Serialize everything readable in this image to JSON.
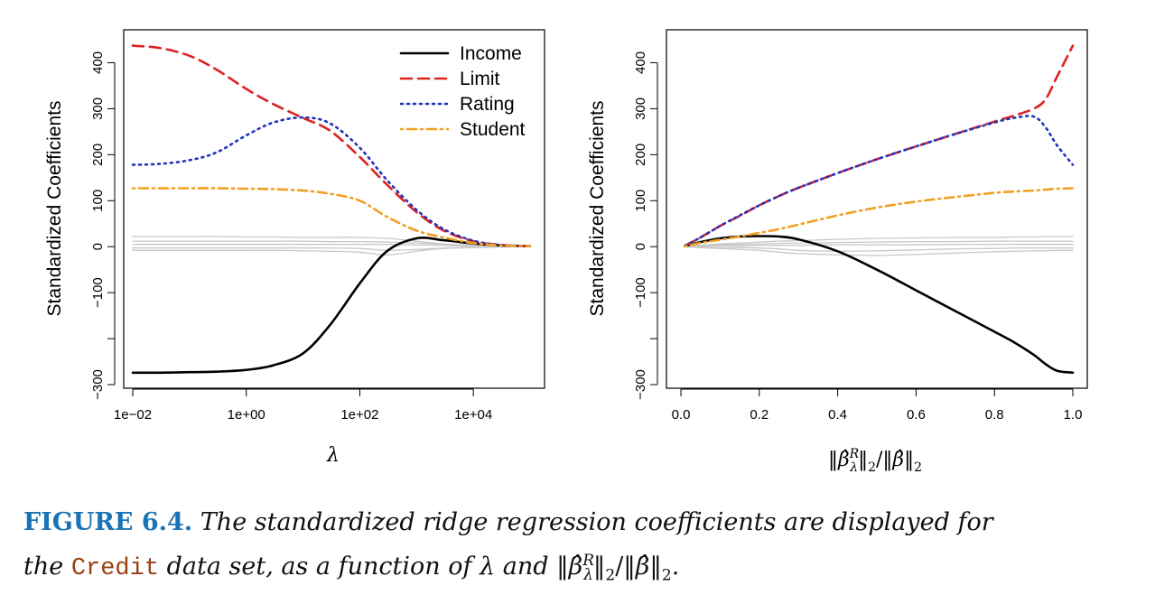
{
  "chart_data": [
    {
      "type": "line",
      "xscale": "log",
      "xlabel": "λ",
      "ylabel": "Standardized Coefficients",
      "xlim": [
        0.01,
        100000
      ],
      "ylim": [
        -300,
        450
      ],
      "x_ticks": [
        "1e−02",
        "1e+00",
        "1e+02",
        "1e+04"
      ],
      "x_tick_values": [
        0.01,
        1,
        100,
        10000
      ],
      "y_ticks": [
        "−300",
        "−100",
        "0",
        "100",
        "200",
        "300",
        "400"
      ],
      "y_tick_values": [
        -300,
        -100,
        0,
        100,
        200,
        300,
        400
      ],
      "legend_placement": "top-right",
      "legend": [
        {
          "name": "Income",
          "color": "#000000",
          "style": "solid"
        },
        {
          "name": "Limit",
          "color": "#dd2222",
          "style": "dashed"
        },
        {
          "name": "Rating",
          "color": "#2233bb",
          "style": "dotted"
        },
        {
          "name": "Student",
          "color": "#f0a020",
          "style": "dotdash"
        }
      ],
      "x": [
        0.01,
        0.03,
        0.1,
        0.3,
        1,
        3,
        10,
        30,
        100,
        300,
        1000,
        3000,
        10000,
        30000,
        100000
      ],
      "series": [
        {
          "name": "Income",
          "color": "#000000",
          "style": "solid",
          "values": [
            -274,
            -274,
            -273,
            -272,
            -268,
            -258,
            -232,
            -170,
            -80,
            -10,
            18,
            14,
            7,
            3,
            1
          ]
        },
        {
          "name": "Limit",
          "color": "#dd2222",
          "style": "dashed",
          "values": [
            437,
            432,
            415,
            385,
            343,
            310,
            280,
            252,
            195,
            135,
            75,
            35,
            12,
            4,
            1
          ]
        },
        {
          "name": "Rating",
          "color": "#2233bb",
          "style": "dotted",
          "values": [
            178,
            180,
            188,
            205,
            242,
            270,
            281,
            268,
            215,
            145,
            80,
            38,
            13,
            4,
            1
          ]
        },
        {
          "name": "Student",
          "color": "#f0a020",
          "style": "dotdash",
          "values": [
            127,
            127,
            127,
            127,
            126,
            125,
            122,
            115,
            100,
            65,
            35,
            20,
            8,
            3,
            1
          ]
        },
        {
          "name": "",
          "color": "#c8c8c8",
          "style": "solid",
          "values": [
            22,
            22,
            22,
            22,
            21,
            21,
            20,
            20,
            20,
            18,
            12,
            6,
            3,
            1,
            0
          ]
        },
        {
          "name": "",
          "color": "#c8c8c8",
          "style": "solid",
          "values": [
            12,
            12,
            12,
            12,
            12,
            12,
            12,
            11,
            11,
            10,
            8,
            5,
            2,
            1,
            0
          ]
        },
        {
          "name": "",
          "color": "#c8c8c8",
          "style": "solid",
          "values": [
            5,
            5,
            5,
            5,
            5,
            5,
            5,
            5,
            5,
            5,
            4,
            3,
            1,
            0,
            0
          ]
        },
        {
          "name": "",
          "color": "#c8c8c8",
          "style": "solid",
          "values": [
            -3,
            -3,
            -3,
            -3,
            -3,
            -3,
            -3,
            -3,
            -4,
            -8,
            -6,
            -3,
            -1,
            0,
            0
          ]
        },
        {
          "name": "",
          "color": "#c8c8c8",
          "style": "solid",
          "values": [
            -8,
            -8,
            -8,
            -8,
            -8,
            -8,
            -9,
            -10,
            -12,
            -18,
            -10,
            -4,
            -2,
            -1,
            0
          ]
        }
      ]
    },
    {
      "type": "line",
      "xlabel": "‖β̂λR‖2/‖β̂‖2",
      "ylabel": "Standardized Coefficients",
      "xlim": [
        0,
        1
      ],
      "ylim": [
        -300,
        450
      ],
      "x_ticks": [
        "0.0",
        "0.2",
        "0.4",
        "0.6",
        "0.8",
        "1.0"
      ],
      "x_tick_values": [
        0,
        0.2,
        0.4,
        0.6,
        0.8,
        1.0
      ],
      "y_ticks": [
        "−300",
        "−100",
        "0",
        "100",
        "200",
        "300",
        "400"
      ],
      "y_tick_values": [
        -300,
        -100,
        0,
        100,
        200,
        300,
        400
      ],
      "x": [
        0.01,
        0.05,
        0.1,
        0.15,
        0.2,
        0.25,
        0.3,
        0.4,
        0.5,
        0.6,
        0.7,
        0.8,
        0.85,
        0.9,
        0.93,
        0.96,
        1.0
      ],
      "series": [
        {
          "name": "Income",
          "color": "#000000",
          "style": "solid",
          "values": [
            1,
            10,
            18,
            22,
            23,
            22,
            16,
            -10,
            -50,
            -95,
            -140,
            -185,
            -208,
            -235,
            -255,
            -270,
            -274
          ]
        },
        {
          "name": "Limit",
          "color": "#dd2222",
          "style": "dashed",
          "values": [
            2,
            20,
            45,
            67,
            90,
            110,
            128,
            160,
            190,
            218,
            245,
            272,
            285,
            300,
            320,
            370,
            437
          ]
        },
        {
          "name": "Rating",
          "color": "#2233bb",
          "style": "dotted",
          "values": [
            2,
            20,
            45,
            68,
            90,
            110,
            128,
            160,
            190,
            218,
            245,
            270,
            280,
            283,
            260,
            220,
            178
          ]
        },
        {
          "name": "Student",
          "color": "#f0a020",
          "style": "dotdash",
          "values": [
            1,
            8,
            15,
            22,
            30,
            38,
            48,
            68,
            85,
            98,
            108,
            117,
            120,
            122,
            124,
            126,
            127
          ]
        },
        {
          "name": "",
          "color": "#c8c8c8",
          "style": "solid",
          "values": [
            0,
            3,
            6,
            8,
            10,
            12,
            13,
            16,
            18,
            19,
            20,
            20,
            21,
            21,
            22,
            22,
            22
          ]
        },
        {
          "name": "",
          "color": "#c8c8c8",
          "style": "solid",
          "values": [
            0,
            2,
            4,
            5,
            6,
            7,
            8,
            9,
            10,
            11,
            11,
            12,
            12,
            12,
            12,
            12,
            12
          ]
        },
        {
          "name": "",
          "color": "#c8c8c8",
          "style": "solid",
          "values": [
            0,
            1,
            2,
            2,
            3,
            3,
            3,
            4,
            4,
            4,
            5,
            5,
            5,
            5,
            5,
            5,
            5
          ]
        },
        {
          "name": "",
          "color": "#c8c8c8",
          "style": "solid",
          "values": [
            0,
            -1,
            -2,
            -2,
            -3,
            -5,
            -8,
            -10,
            -9,
            -7,
            -5,
            -4,
            -3,
            -3,
            -3,
            -3,
            -3
          ]
        },
        {
          "name": "",
          "color": "#c8c8c8",
          "style": "solid",
          "values": [
            0,
            -2,
            -4,
            -6,
            -8,
            -12,
            -15,
            -18,
            -19,
            -17,
            -14,
            -11,
            -10,
            -9,
            -9,
            -8,
            -8
          ]
        }
      ]
    }
  ],
  "caption": {
    "label": "FIGURE 6.4.",
    "text_1": "The standardized ridge regression coefficients are displayed for",
    "text_2a": "the",
    "dataset": "Credit",
    "text_2b": "data set, as a function of",
    "text_2c": "and",
    "lambda": "λ",
    "ratio": "‖β̂λR‖2/‖β̂‖2",
    "end": "."
  }
}
